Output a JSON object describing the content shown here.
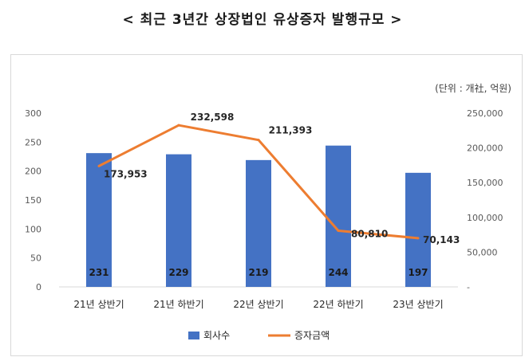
{
  "chart_data": {
    "type": "bar+line",
    "title": "< 최근 3년간 상장법인 유상증자 발행규모 >",
    "unit_note": "(단위 : 개社, 억원)",
    "categories": [
      "21년 상반기",
      "21년 하반기",
      "22년 상반기",
      "22년 하반기",
      "23년 상반기"
    ],
    "series": [
      {
        "name": "회사수",
        "type": "bar",
        "axis": "left",
        "color": "#4472C4",
        "values": [
          231,
          229,
          219,
          244,
          197
        ],
        "labels": [
          "231",
          "229",
          "219",
          "244",
          "197"
        ]
      },
      {
        "name": "증자금액",
        "type": "line",
        "axis": "right",
        "color": "#ED7D31",
        "values": [
          173953,
          232598,
          211393,
          80810,
          70143
        ],
        "labels": [
          "173,953",
          "232,598",
          "211,393",
          "80,810",
          "70,143"
        ]
      }
    ],
    "y_left": {
      "min": 0,
      "max": 300,
      "ticks": [
        "0",
        "50",
        "100",
        "150",
        "200",
        "250",
        "300"
      ]
    },
    "y_right": {
      "min": 0,
      "max": 250000,
      "ticks": [
        "-",
        "50,000",
        "100,000",
        "150,000",
        "200,000",
        "250,000"
      ]
    },
    "grid": false,
    "legend": "bottom"
  }
}
